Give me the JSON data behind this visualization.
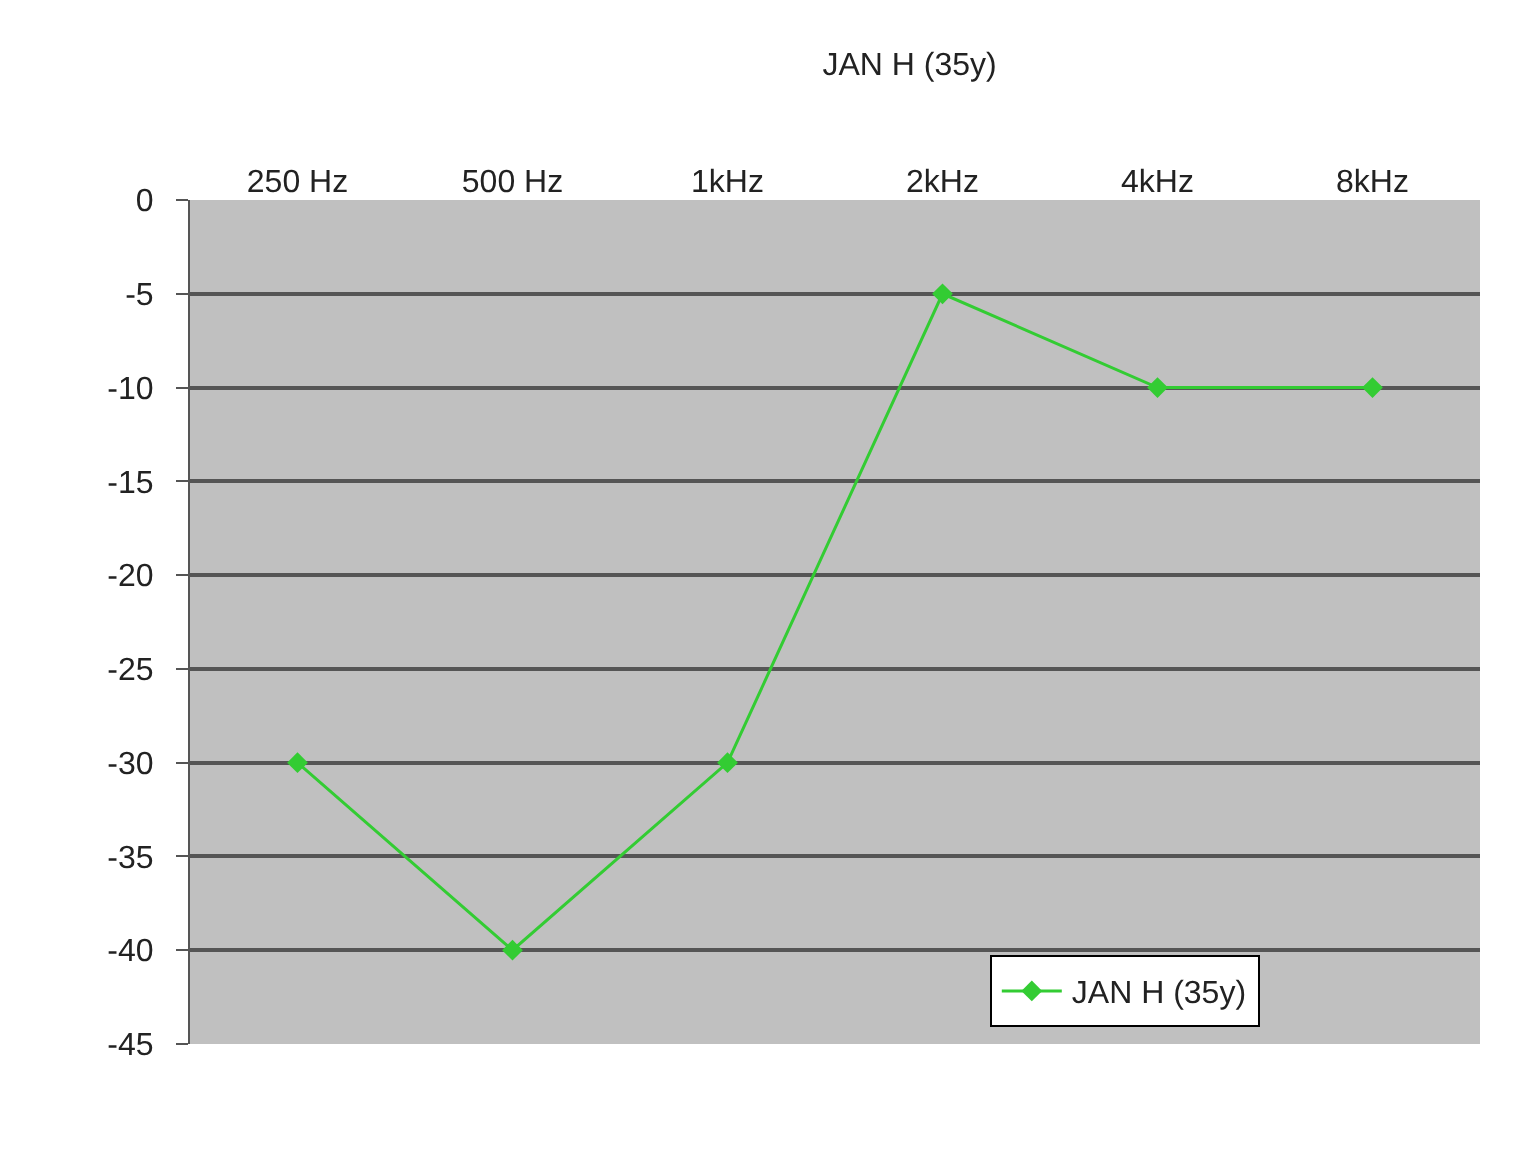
{
  "chart_data": {
    "type": "line",
    "title": "JAN H (35y)",
    "categories": [
      "250 Hz",
      "500 Hz",
      "1kHz",
      "2kHz",
      "4kHz",
      "8kHz"
    ],
    "series": [
      {
        "name": "JAN H (35y)",
        "color": "#33cc33",
        "values": [
          -30,
          -40,
          -30,
          -5,
          -10,
          -10
        ]
      }
    ],
    "ylim": [
      -45,
      0
    ],
    "yticks": [
      -45,
      -40,
      -35,
      -30,
      -25,
      -20,
      -15,
      -10,
      -5,
      0
    ],
    "grid": "y",
    "legend": "bottom right",
    "marker": "diamond",
    "line_style": "solid"
  }
}
